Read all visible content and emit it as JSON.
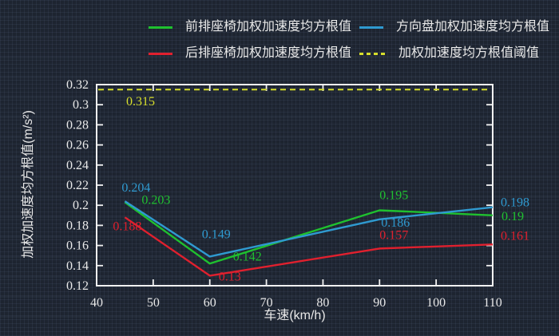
{
  "chart_data": {
    "type": "line",
    "x": [
      45,
      60,
      90,
      110
    ],
    "xlabel": "车速(km/h)",
    "ylabel": "加权加速度均方根值(m/s²)",
    "xlim": [
      40,
      110
    ],
    "ylim": [
      0.12,
      0.32
    ],
    "xticks": [
      40,
      50,
      60,
      70,
      80,
      90,
      100,
      110
    ],
    "yticks": [
      0.12,
      0.14,
      0.16,
      0.18,
      0.2,
      0.22,
      0.24,
      0.26,
      0.28,
      0.3,
      0.32
    ],
    "grid": false,
    "legend_position": "top",
    "frame_color": "#f2f2f2",
    "text_color": "#e9e9e9",
    "background_color": "#1d2430",
    "series": [
      {
        "key": "front-seat",
        "name": "前排座椅加权加速度均方根值",
        "color": "#1fc12f",
        "values": [
          0.203,
          0.142,
          0.195,
          0.19
        ]
      },
      {
        "key": "steering-wheel",
        "name": "方向盘加权加速度均方根值",
        "color": "#2f9ad0",
        "values": [
          0.204,
          0.149,
          0.186,
          0.198
        ]
      },
      {
        "key": "rear-seat",
        "name": "后排座椅加权加速度均方根值",
        "color": "#e0202e",
        "values": [
          0.188,
          0.13,
          0.157,
          0.161
        ]
      }
    ],
    "threshold": {
      "key": "threshold",
      "name": "加权加速度均方根值阈值",
      "color": "#d6de2b",
      "value": 0.315,
      "style": "dashed"
    }
  }
}
